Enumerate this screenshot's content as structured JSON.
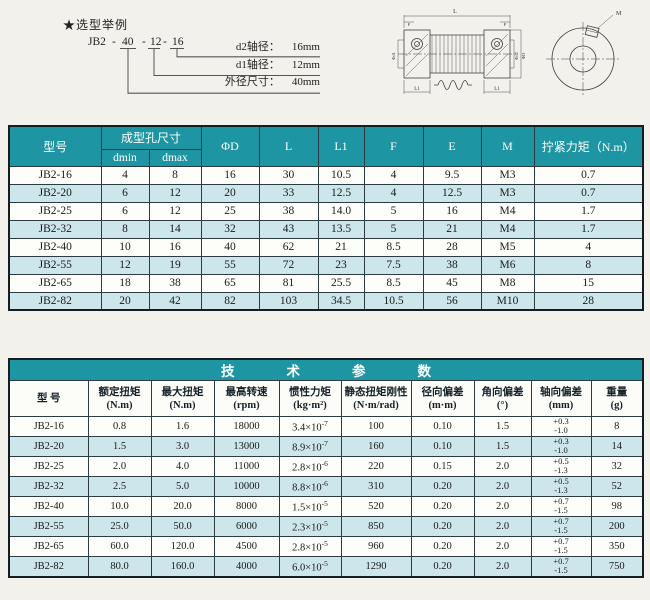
{
  "colors": {
    "teal": "#1e95a2",
    "row-alt": "#cde6ec",
    "grid": "#2c3a42",
    "frame": "#151d22",
    "ink": "#1a1a1a",
    "paper": "#f2f1ec"
  },
  "selection_example": {
    "title": "★选型举例",
    "code": {
      "prefix": "JB2",
      "sep1": "-",
      "outer": "40",
      "sep2": "-",
      "d1": "12",
      "sep3": "-",
      "d2": "16"
    },
    "callouts": [
      {
        "label": "d2轴径：",
        "value": "16mm"
      },
      {
        "label": "d1轴径：",
        "value": "12mm"
      },
      {
        "label": "外径尺寸：",
        "value": "40mm"
      }
    ]
  },
  "drawings": {
    "labels": {
      "L": "L",
      "F": "F",
      "L1": "L1",
      "d1": "Φd1",
      "d2": "Φd2",
      "D": "ΦD",
      "M": "M"
    }
  },
  "dim_table": {
    "headers": {
      "model": "型号",
      "hole": "成型孔尺寸",
      "dmin": "dmin",
      "dmax": "dmax",
      "d": "ΦD",
      "l": "L",
      "l1": "L1",
      "f": "F",
      "e": "E",
      "m": "M",
      "torque": "拧紧力矩（N.m）"
    },
    "rows": [
      [
        "JB2-16",
        "4",
        "8",
        "16",
        "30",
        "10.5",
        "4",
        "9.5",
        "M3",
        "0.7"
      ],
      [
        "JB2-20",
        "6",
        "12",
        "20",
        "33",
        "12.5",
        "4",
        "12.5",
        "M3",
        "0.7"
      ],
      [
        "JB2-25",
        "6",
        "12",
        "25",
        "38",
        "14.0",
        "5",
        "16",
        "M4",
        "1.7"
      ],
      [
        "JB2-32",
        "8",
        "14",
        "32",
        "43",
        "13.5",
        "5",
        "21",
        "M4",
        "1.7"
      ],
      [
        "JB2-40",
        "10",
        "16",
        "40",
        "62",
        "21",
        "8.5",
        "28",
        "M5",
        "4"
      ],
      [
        "JB2-55",
        "12",
        "19",
        "55",
        "72",
        "23",
        "7.5",
        "38",
        "M6",
        "8"
      ],
      [
        "JB2-65",
        "18",
        "38",
        "65",
        "81",
        "25.5",
        "8.5",
        "45",
        "M8",
        "15"
      ],
      [
        "JB2-82",
        "20",
        "42",
        "82",
        "103",
        "34.5",
        "10.5",
        "56",
        "M10",
        "28"
      ]
    ]
  },
  "tech_table": {
    "title": "技术参数",
    "headers": [
      {
        "l1": "型 号",
        "l2": ""
      },
      {
        "l1": "额定扭矩",
        "l2": "(N.m)"
      },
      {
        "l1": "最大扭矩",
        "l2": "(N.m)"
      },
      {
        "l1": "最高转速",
        "l2": "(rpm)"
      },
      {
        "l1": "惯性力矩",
        "l2": "(kg·m²)"
      },
      {
        "l1": "静态扭矩刚性",
        "l2": "(N·m/rad)"
      },
      {
        "l1": "径向偏差",
        "l2": "(m·m)"
      },
      {
        "l1": "角向偏差",
        "l2": "(°)"
      },
      {
        "l1": "轴向偏差",
        "l2": "(mm)"
      },
      {
        "l1": "重量",
        "l2": "(g)"
      }
    ],
    "rows": [
      [
        "JB2-16",
        "0.8",
        "1.6",
        "18000",
        {
          "sci": [
            "3.4×10",
            "-7"
          ]
        },
        "100",
        "0.10",
        "1.5",
        {
          "tol": [
            "+0.3",
            "-1.0"
          ]
        },
        "8"
      ],
      [
        "JB2-20",
        "1.5",
        "3.0",
        "13000",
        {
          "sci": [
            "8.9×10",
            "-7"
          ]
        },
        "160",
        "0.10",
        "1.5",
        {
          "tol": [
            "+0.3",
            "-1.0"
          ]
        },
        "14"
      ],
      [
        "JB2-25",
        "2.0",
        "4.0",
        "11000",
        {
          "sci": [
            "2.8×10",
            "-6"
          ]
        },
        "220",
        "0.15",
        "2.0",
        {
          "tol": [
            "+0.5",
            "-1.3"
          ]
        },
        "32"
      ],
      [
        "JB2-32",
        "2.5",
        "5.0",
        "10000",
        {
          "sci": [
            "8.8×10",
            "-6"
          ]
        },
        "310",
        "0.20",
        "2.0",
        {
          "tol": [
            "+0.5",
            "-1.3"
          ]
        },
        "52"
      ],
      [
        "JB2-40",
        "10.0",
        "20.0",
        "8000",
        {
          "sci": [
            "1.5×10",
            "-5"
          ]
        },
        "520",
        "0.20",
        "2.0",
        {
          "tol": [
            "+0.7",
            "-1.5"
          ]
        },
        "98"
      ],
      [
        "JB2-55",
        "25.0",
        "50.0",
        "6000",
        {
          "sci": [
            "2.3×10",
            "-5"
          ]
        },
        "850",
        "0.20",
        "2.0",
        {
          "tol": [
            "+0.7",
            "-1.5"
          ]
        },
        "200"
      ],
      [
        "JB2-65",
        "60.0",
        "120.0",
        "4500",
        {
          "sci": [
            "2.8×10",
            "-5"
          ]
        },
        "960",
        "0.20",
        "2.0",
        {
          "tol": [
            "+0.7",
            "-1.5"
          ]
        },
        "350"
      ],
      [
        "JB2-82",
        "80.0",
        "160.0",
        "4000",
        {
          "sci": [
            "6.0×10",
            "-5"
          ]
        },
        "1290",
        "0.20",
        "2.0",
        {
          "tol": [
            "+0.7",
            "-1.5"
          ]
        },
        "750"
      ]
    ]
  }
}
